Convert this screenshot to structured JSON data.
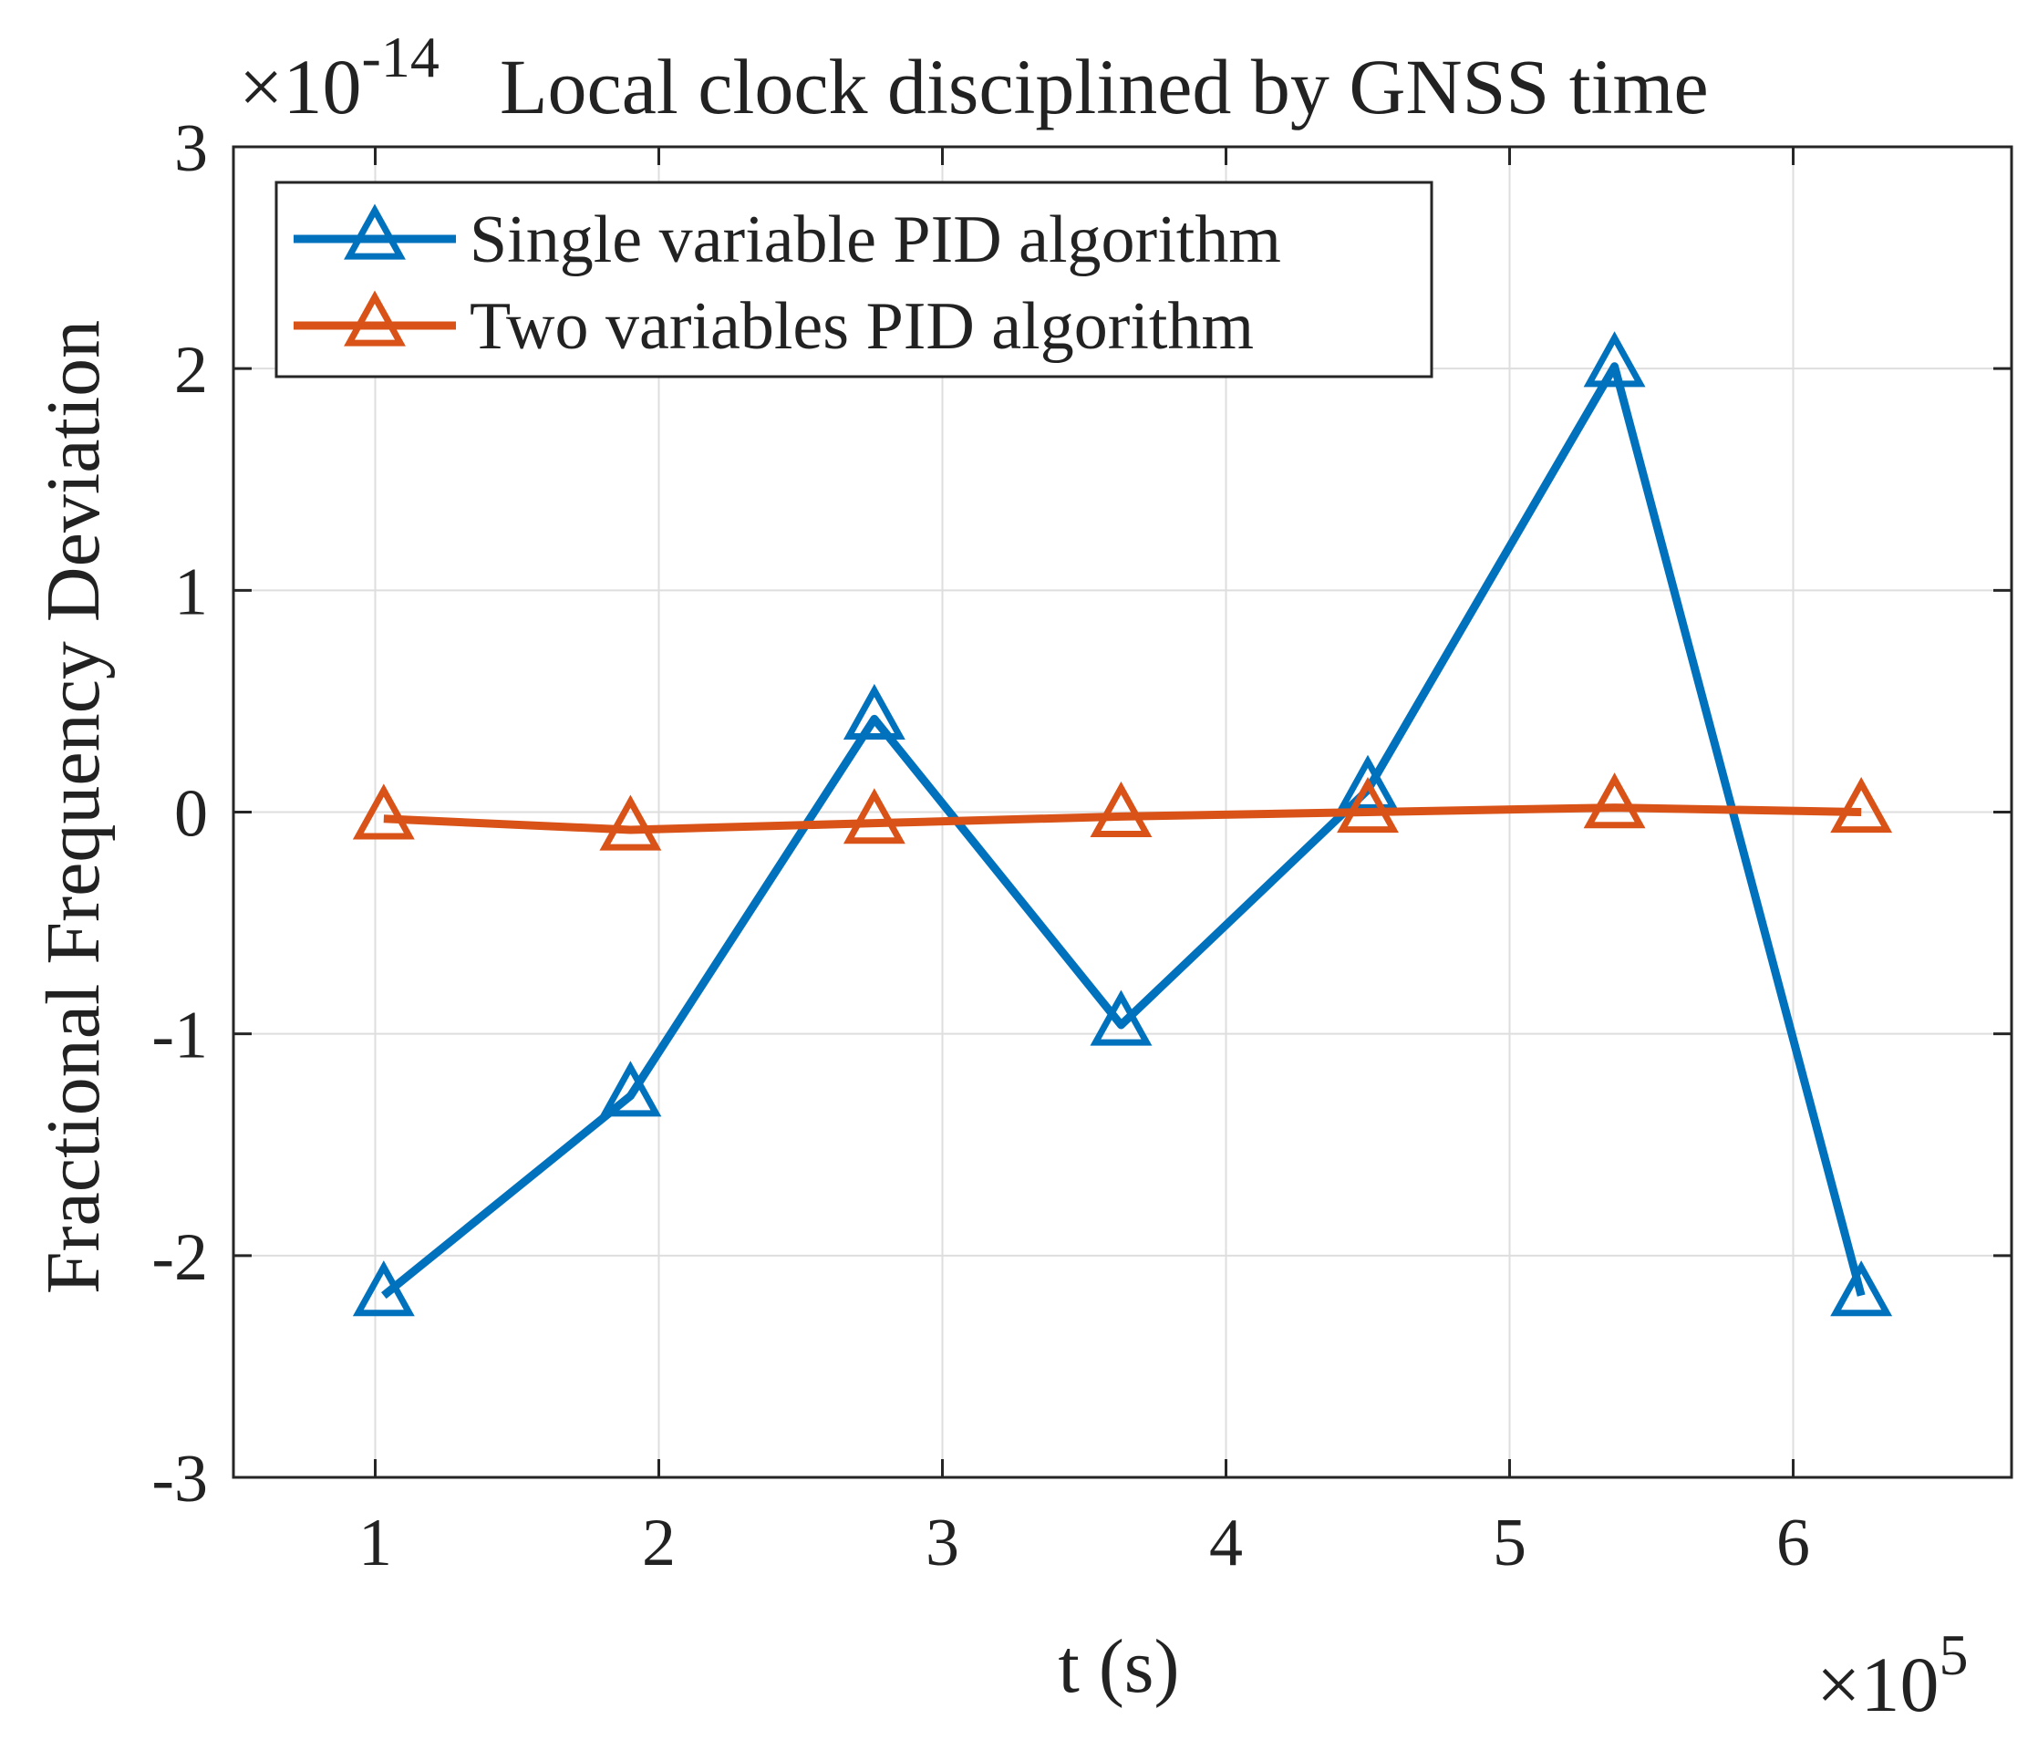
{
  "chart_data": {
    "type": "line",
    "title": "Local clock disciplined by GNSS time",
    "y_multiplier_label": "×10",
    "y_multiplier_exponent": "-14",
    "x_multiplier_label": "×10",
    "x_multiplier_exponent": "5",
    "xlabel": "t (s)",
    "ylabel": "Fractional Frequency Deviation",
    "xlim": [
      0.5,
      6.77
    ],
    "ylim": [
      -3,
      3
    ],
    "xticks": [
      1,
      2,
      3,
      4,
      5,
      6
    ],
    "yticks": [
      -3,
      -2,
      -1,
      0,
      1,
      2,
      3
    ],
    "grid": true,
    "legend_position": "top-left",
    "series": [
      {
        "name": "Single variable PID algorithm",
        "color": "#0072BD",
        "marker": "triangle",
        "x": [
          1.03,
          1.9,
          2.76,
          3.63,
          4.5,
          5.37,
          6.24
        ],
        "y": [
          -2.18,
          -1.28,
          0.42,
          -0.96,
          0.1,
          2.01,
          -2.18
        ]
      },
      {
        "name": "Two variables PID algorithm",
        "color": "#D95319",
        "marker": "triangle",
        "x": [
          1.03,
          1.9,
          2.76,
          3.63,
          4.5,
          5.37,
          6.24
        ],
        "y": [
          -0.03,
          -0.08,
          -0.05,
          -0.02,
          0.0,
          0.02,
          0.0
        ]
      }
    ]
  }
}
